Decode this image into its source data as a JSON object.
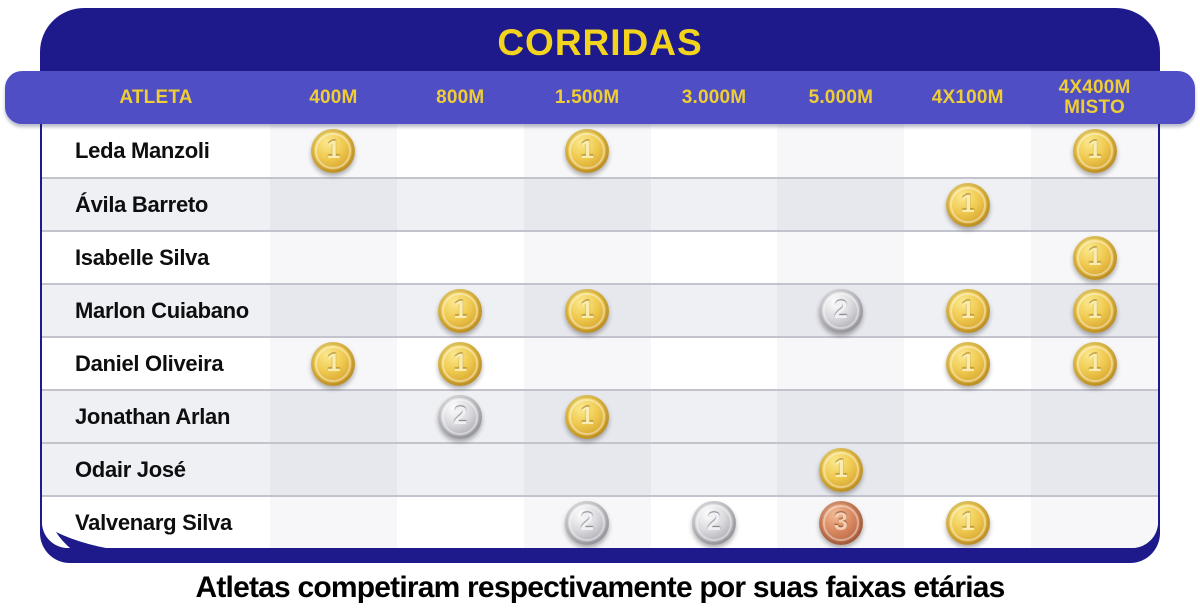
{
  "title": "CORRIDAS",
  "caption": "Atletas competiram respectivamente por suas faixas etárias",
  "table": {
    "columns": [
      "ATLETA",
      "400M",
      "800M",
      "1.500M",
      "3.000M",
      "5.000M",
      "4X100M",
      "4X400M MISTO"
    ],
    "rows": [
      {
        "athlete": "Leda Manzoli",
        "results": [
          1,
          null,
          1,
          null,
          null,
          null,
          1
        ]
      },
      {
        "athlete": "Ávila Barreto",
        "results": [
          null,
          null,
          null,
          null,
          null,
          1,
          null
        ]
      },
      {
        "athlete": "Isabelle Silva",
        "results": [
          null,
          null,
          null,
          null,
          null,
          null,
          1
        ]
      },
      {
        "athlete": "Marlon Cuiabano",
        "results": [
          null,
          1,
          1,
          null,
          2,
          1,
          1
        ]
      },
      {
        "athlete": "Daniel Oliveira",
        "results": [
          1,
          1,
          null,
          null,
          null,
          1,
          1
        ]
      },
      {
        "athlete": "Jonathan Arlan",
        "results": [
          null,
          2,
          1,
          null,
          null,
          null,
          null
        ]
      },
      {
        "athlete": "Odair José",
        "results": [
          null,
          null,
          null,
          null,
          1,
          null,
          null
        ]
      },
      {
        "athlete": "Valvenarg Silva",
        "results": [
          null,
          null,
          2,
          2,
          3,
          1,
          null
        ]
      }
    ]
  },
  "medal_types": {
    "1": "gold",
    "2": "silver",
    "3": "bronze"
  },
  "colors": {
    "navy": "#1e1a8c",
    "header_blue": "#4f4ec4",
    "header_text_yellow": "#eecd35",
    "title_yellow": "#f2d41e",
    "row_shade": "#eef0f4",
    "separator": "#c3c3cd",
    "gold": "#efc94f",
    "silver": "#c9c9cf",
    "bronze": "#c87c55"
  },
  "chart_data": {
    "type": "table",
    "title": "CORRIDAS",
    "columns": [
      "ATLETA",
      "400M",
      "800M",
      "1.500M",
      "3.000M",
      "5.000M",
      "4X100M",
      "4X400M MISTO"
    ],
    "rows": [
      [
        "Leda Manzoli",
        "gold-1",
        "",
        "gold-1",
        "",
        "",
        "",
        "gold-1"
      ],
      [
        "Ávila Barreto",
        "",
        "",
        "",
        "",
        "",
        "gold-1",
        ""
      ],
      [
        "Isabelle Silva",
        "",
        "",
        "",
        "",
        "",
        "",
        "gold-1"
      ],
      [
        "Marlon Cuiabano",
        "",
        "gold-1",
        "gold-1",
        "",
        "silver-2",
        "gold-1",
        "gold-1"
      ],
      [
        "Daniel Oliveira",
        "gold-1",
        "gold-1",
        "",
        "",
        "",
        "gold-1",
        "gold-1"
      ],
      [
        "Jonathan Arlan",
        "",
        "silver-2",
        "gold-1",
        "",
        "",
        "",
        ""
      ],
      [
        "Odair José",
        "",
        "",
        "",
        "",
        "gold-1",
        "",
        ""
      ],
      [
        "Valvenarg Silva",
        "",
        "",
        "silver-2",
        "silver-2",
        "bronze-3",
        "gold-1",
        ""
      ]
    ],
    "annotations": [
      "Atletas competiram respectivamente por suas faixas etárias"
    ]
  }
}
